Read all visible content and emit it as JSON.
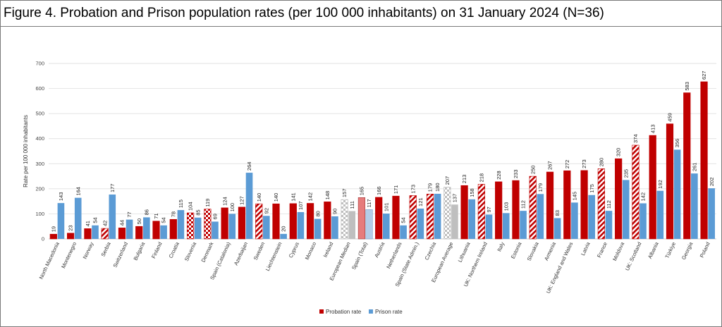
{
  "colors": {
    "probation": "#c00000",
    "prison": "#5b9bd5",
    "spain_probation": "#e67c7c",
    "spain_prison": "#b3cde8",
    "median_avg": "#bfbfbf",
    "grid": "#d9d9d9"
  },
  "chart_data": {
    "type": "bar",
    "title": "Figure 4. Probation and Prison population rates (per 100 000 inhabitants) on 31 January 2024 (N=36)",
    "ylabel": "Rate per 100 000 inhabitants",
    "xlabel": "",
    "ylim": [
      0,
      700
    ],
    "yticks": [
      0,
      100,
      200,
      300,
      400,
      500,
      600,
      700
    ],
    "grid": true,
    "legend_position": "bottom-center",
    "categories": [
      "North Macedonia",
      "Montenegro",
      "Norway",
      "Serbia",
      "Switzerland",
      "Bulgaria",
      "Finland",
      "Croatia",
      "Slovenia",
      "Denmark",
      "Spain (Catalonia)",
      "Azerbaijan",
      "Sweden",
      "Liechtenstein",
      "Cyprus",
      "Monaco",
      "Ireland",
      "European Median",
      "Spain (Total)",
      "Austria",
      "Netherlands",
      "Spain (State Admin.)",
      "Czechia",
      "European Average",
      "Lithuania",
      "UK: Northern Ireland",
      "Italy",
      "Estonia",
      "Slovakia",
      "Armenia",
      "UK: England and Wales",
      "Latvia",
      "France",
      "Moldova",
      "UK: Scotland",
      "Albania",
      "Türkiye",
      "Georgia",
      "Poland"
    ],
    "series": [
      {
        "name": "Probation rate",
        "values": [
          19,
          23,
          41,
          42,
          44,
          50,
          71,
          78,
          104,
          119,
          124,
          127,
          140,
          140,
          141,
          142,
          148,
          157,
          165,
          166,
          171,
          173,
          179,
          207,
          213,
          218,
          228,
          233,
          250,
          267,
          272,
          273,
          280,
          320,
          374,
          413,
          459,
          583,
          627
        ]
      },
      {
        "name": "Prison rate",
        "values": [
          143,
          164,
          54,
          177,
          77,
          86,
          54,
          115,
          85,
          69,
          100,
          264,
          92,
          20,
          107,
          80,
          90,
          111,
          117,
          101,
          54,
          121,
          180,
          137,
          158,
          97,
          103,
          112,
          179,
          83,
          145,
          175,
          112,
          235,
          142,
          192,
          356,
          261,
          202
        ]
      }
    ],
    "bar_styles": [
      "solid",
      "solid",
      "solid",
      "hatch",
      "solid",
      "solid",
      "solid",
      "solid",
      "check",
      "check",
      "solid",
      "solid",
      "hatch",
      "solid",
      "solid",
      "solid",
      "solid",
      "grey-check",
      "spain",
      "solid",
      "solid",
      "hatch",
      "hatch",
      "grey-check",
      "solid",
      "hatch",
      "solid",
      "solid",
      "hatch",
      "solid",
      "solid",
      "solid",
      "hatch",
      "solid",
      "hatch",
      "solid",
      "solid",
      "solid",
      "solid"
    ]
  }
}
